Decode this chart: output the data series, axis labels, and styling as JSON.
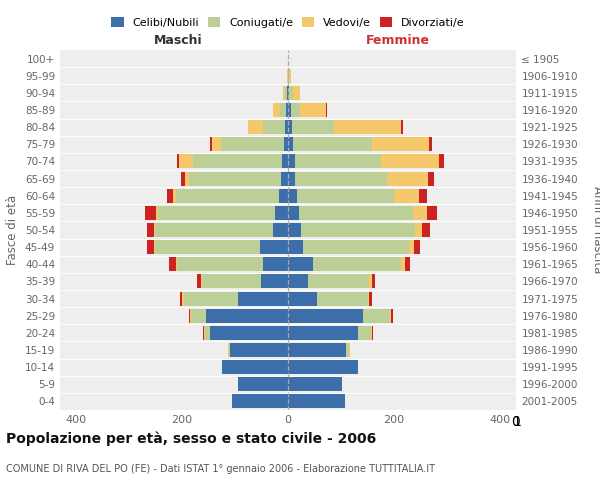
{
  "age_groups": [
    "100+",
    "95-99",
    "90-94",
    "85-89",
    "80-84",
    "75-79",
    "70-74",
    "65-69",
    "60-64",
    "55-59",
    "50-54",
    "45-49",
    "40-44",
    "35-39",
    "30-34",
    "25-29",
    "20-24",
    "15-19",
    "10-14",
    "5-9",
    "0-4"
  ],
  "birth_years": [
    "≤ 1905",
    "1906-1910",
    "1911-1915",
    "1916-1920",
    "1921-1925",
    "1926-1930",
    "1931-1935",
    "1936-1940",
    "1941-1945",
    "1946-1950",
    "1951-1955",
    "1956-1960",
    "1961-1965",
    "1966-1970",
    "1971-1975",
    "1976-1980",
    "1981-1985",
    "1986-1990",
    "1991-1995",
    "1996-2000",
    "2001-2005"
  ],
  "male_celibe": [
    0,
    0,
    1,
    3,
    5,
    8,
    12,
    14,
    17,
    24,
    28,
    52,
    48,
    50,
    95,
    155,
    148,
    110,
    125,
    95,
    105
  ],
  "male_coniugato": [
    0,
    0,
    4,
    12,
    42,
    118,
    168,
    172,
    195,
    222,
    222,
    198,
    162,
    112,
    102,
    28,
    8,
    2,
    0,
    0,
    0
  ],
  "male_vedovo": [
    0,
    2,
    5,
    14,
    28,
    18,
    25,
    8,
    5,
    3,
    2,
    2,
    2,
    2,
    2,
    2,
    2,
    1,
    0,
    0,
    0
  ],
  "male_divorziato": [
    0,
    0,
    0,
    0,
    0,
    3,
    5,
    8,
    12,
    20,
    14,
    14,
    12,
    8,
    5,
    2,
    2,
    1,
    0,
    0,
    0
  ],
  "female_nubile": [
    0,
    0,
    2,
    5,
    8,
    10,
    14,
    14,
    17,
    20,
    24,
    28,
    48,
    38,
    55,
    142,
    132,
    110,
    132,
    102,
    108
  ],
  "female_coniugata": [
    0,
    2,
    8,
    18,
    78,
    148,
    162,
    172,
    182,
    215,
    215,
    200,
    165,
    115,
    95,
    50,
    25,
    5,
    0,
    0,
    0
  ],
  "female_vedova": [
    0,
    3,
    12,
    48,
    128,
    108,
    108,
    78,
    48,
    28,
    14,
    9,
    7,
    5,
    3,
    3,
    2,
    1,
    0,
    0,
    0
  ],
  "female_divorziata": [
    0,
    0,
    0,
    2,
    2,
    5,
    10,
    12,
    15,
    18,
    14,
    12,
    10,
    7,
    5,
    3,
    2,
    1,
    0,
    0,
    0
  ],
  "colors": {
    "celibe": "#3C6EAA",
    "coniugato": "#BCCF96",
    "vedovo": "#F5C96B",
    "divorziato": "#CC2222"
  },
  "xlim": 430,
  "title": "Popolazione per età, sesso e stato civile - 2006",
  "subtitle": "COMUNE DI RIVA DEL PO (FE) - Dati ISTAT 1° gennaio 2006 - Elaborazione TUTTITALIA.IT",
  "ylabel": "Fasce di età",
  "ylabel_right": "Anni di nascita",
  "legend_labels": [
    "Celibi/Nubili",
    "Coniugati/e",
    "Vedovi/e",
    "Divorziati/e"
  ],
  "bg_color": "#eeeeee"
}
